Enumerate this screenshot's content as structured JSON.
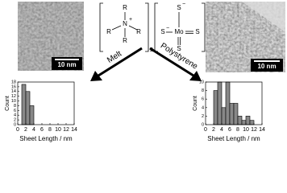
{
  "structure": {
    "cation": [
      "R",
      "R",
      "N",
      "+",
      "R",
      "R"
    ],
    "count": "2",
    "anion": [
      "S",
      "−",
      "S",
      "−",
      "Mo",
      "S",
      "S"
    ]
  },
  "arrows": [
    "Melt",
    "Polystyrene"
  ],
  "images": [
    {
      "scale_bar": "10 nm"
    },
    {
      "scale_bar": "10 nm"
    }
  ],
  "chart_data": [
    {
      "type": "histogram",
      "bins": [
        1,
        2,
        3,
        4
      ],
      "values": [
        17,
        14,
        8
      ],
      "color": "#888888",
      "xlabel": "Sheet Length / nm",
      "ylabel": "Count",
      "xlim": [
        0,
        14
      ],
      "xticks": [
        0,
        2,
        4,
        6,
        8,
        10,
        12,
        14
      ],
      "ylim": [
        0,
        18
      ],
      "yticks": [
        0,
        2,
        4,
        6,
        8,
        10,
        12,
        14,
        16,
        18
      ]
    },
    {
      "type": "histogram",
      "bins": [
        2,
        3,
        4,
        5,
        6,
        7,
        8,
        9,
        10,
        11,
        12
      ],
      "values": [
        8,
        10,
        4,
        10,
        5,
        5,
        2,
        1,
        2,
        1
      ],
      "color": "#888888",
      "xlabel": "Sheet Length / nm",
      "ylabel": "Count",
      "xlim": [
        0,
        14
      ],
      "xticks": [
        0,
        2,
        4,
        6,
        8,
        10,
        12,
        14
      ],
      "ylim": [
        0,
        10
      ],
      "yticks": [
        0,
        2,
        4,
        6,
        8,
        10
      ]
    }
  ]
}
